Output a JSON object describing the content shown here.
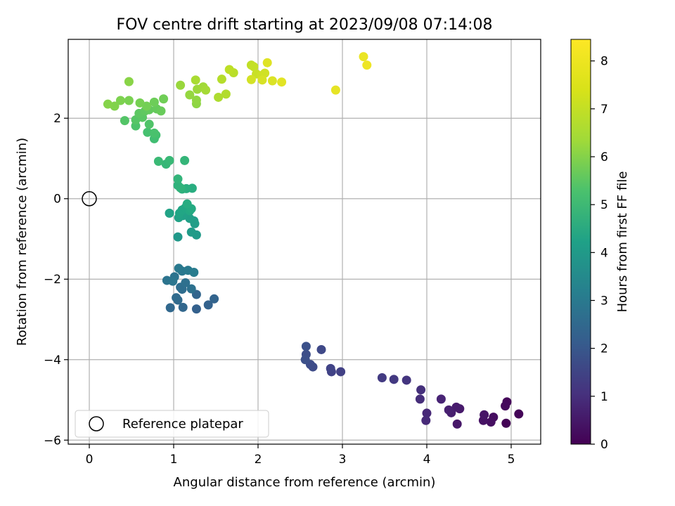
{
  "chart_data": {
    "type": "scatter",
    "title": "FOV centre drift starting at 2023/09/08 07:14:08",
    "xlabel": "Angular distance from reference (arcmin)",
    "ylabel": "Rotation from reference (arcmin)",
    "xlim": [
      -0.25,
      5.35
    ],
    "ylim": [
      -6.1,
      3.96
    ],
    "xticks": [
      "0",
      "1",
      "2",
      "3",
      "4",
      "5"
    ],
    "yticks": [
      "−6",
      "−4",
      "−2",
      "0",
      "2"
    ],
    "grid": true,
    "legend": {
      "position": "lower-left",
      "entries": [
        "Reference platepar"
      ]
    },
    "reference_point": {
      "x": 0,
      "y": 0
    },
    "colorbar": {
      "label": "Hours from first FF file",
      "range": [
        0,
        8.45
      ],
      "ticks": [
        "0",
        "1",
        "2",
        "3",
        "4",
        "5",
        "6",
        "7",
        "8"
      ],
      "colormap": "viridis"
    },
    "series": [
      {
        "points": [
          [
            4.94,
            -5.58,
            0.05
          ],
          [
            5.09,
            -5.35,
            0.1
          ],
          [
            4.95,
            -5.05,
            0.15
          ],
          [
            4.93,
            -5.15,
            0.2
          ],
          [
            4.79,
            -5.43,
            0.3
          ],
          [
            4.76,
            -5.55,
            0.35
          ],
          [
            4.67,
            -5.51,
            0.4
          ],
          [
            4.68,
            -5.37,
            0.45
          ],
          [
            4.36,
            -5.6,
            0.55
          ],
          [
            4.39,
            -5.22,
            0.6
          ],
          [
            4.35,
            -5.18,
            0.65
          ],
          [
            4.29,
            -5.32,
            0.7
          ],
          [
            4.26,
            -5.25,
            0.75
          ],
          [
            4.17,
            -4.98,
            0.85
          ],
          [
            4.0,
            -5.33,
            0.95
          ],
          [
            3.99,
            -5.51,
            1.0
          ],
          [
            3.92,
            -4.98,
            1.1
          ],
          [
            3.93,
            -4.75,
            1.15
          ],
          [
            3.76,
            -4.51,
            1.3
          ],
          [
            3.61,
            -4.49,
            1.4
          ],
          [
            3.47,
            -4.45,
            1.45
          ],
          [
            2.98,
            -4.3,
            1.6
          ],
          [
            2.87,
            -4.3,
            1.65
          ],
          [
            2.86,
            -4.22,
            1.7
          ],
          [
            2.75,
            -3.75,
            1.85
          ],
          [
            2.65,
            -4.18,
            1.9
          ],
          [
            2.62,
            -4.12,
            1.95
          ],
          [
            2.57,
            -3.87,
            2.0
          ],
          [
            2.56,
            -4.0,
            2.05
          ],
          [
            2.57,
            -3.67,
            2.1
          ],
          [
            1.27,
            -2.74,
            2.6
          ],
          [
            1.41,
            -2.64,
            2.65
          ],
          [
            1.48,
            -2.49,
            2.7
          ],
          [
            1.27,
            -2.38,
            2.75
          ],
          [
            1.11,
            -2.7,
            2.8
          ],
          [
            0.96,
            -2.71,
            2.85
          ],
          [
            1.05,
            -2.52,
            2.9
          ],
          [
            1.03,
            -2.46,
            2.95
          ],
          [
            1.1,
            -2.25,
            3.0
          ],
          [
            1.08,
            -2.2,
            3.05
          ],
          [
            1.14,
            -2.09,
            3.1
          ],
          [
            1.21,
            -2.24,
            3.15
          ],
          [
            1.01,
            -1.94,
            3.2
          ],
          [
            0.92,
            -2.03,
            3.25
          ],
          [
            0.99,
            -2.05,
            3.3
          ],
          [
            1.1,
            -1.8,
            3.35
          ],
          [
            1.06,
            -1.73,
            3.4
          ],
          [
            1.17,
            -1.78,
            3.45
          ],
          [
            1.24,
            -1.83,
            3.5
          ],
          [
            1.05,
            -0.95,
            4.5
          ],
          [
            1.27,
            -0.9,
            4.55
          ],
          [
            1.21,
            -0.83,
            4.6
          ],
          [
            1.25,
            -0.62,
            4.65
          ],
          [
            1.24,
            -0.55,
            4.7
          ],
          [
            1.19,
            -0.49,
            4.75
          ],
          [
            1.11,
            -0.42,
            4.8
          ],
          [
            1.06,
            -0.47,
            4.85
          ],
          [
            0.95,
            -0.36,
            4.9
          ],
          [
            1.07,
            -0.36,
            4.95
          ],
          [
            1.1,
            -0.28,
            5.0
          ],
          [
            1.14,
            -0.22,
            5.05
          ],
          [
            1.19,
            -0.3,
            5.1
          ],
          [
            1.21,
            -0.25,
            5.15
          ],
          [
            1.16,
            -0.13,
            5.2
          ],
          [
            1.22,
            0.26,
            5.25
          ],
          [
            1.15,
            0.25,
            5.3
          ],
          [
            1.1,
            0.24,
            5.35
          ],
          [
            1.05,
            0.33,
            5.4
          ],
          [
            1.08,
            0.27,
            5.45
          ],
          [
            1.05,
            0.49,
            5.5
          ],
          [
            1.13,
            0.95,
            5.55
          ],
          [
            0.91,
            0.86,
            5.6
          ],
          [
            0.95,
            0.95,
            5.65
          ],
          [
            0.82,
            0.93,
            5.7
          ],
          [
            0.77,
            1.49,
            5.85
          ],
          [
            0.79,
            1.58,
            5.9
          ],
          [
            0.69,
            1.65,
            5.95
          ],
          [
            0.77,
            1.63,
            6.0
          ],
          [
            0.55,
            1.81,
            6.05
          ],
          [
            0.71,
            1.85,
            6.1
          ],
          [
            0.42,
            1.94,
            6.15
          ],
          [
            0.55,
            1.96,
            6.2
          ],
          [
            0.63,
            2.02,
            6.25
          ],
          [
            0.59,
            2.12,
            6.3
          ],
          [
            0.66,
            2.18,
            6.35
          ],
          [
            0.71,
            2.21,
            6.4
          ],
          [
            0.8,
            2.23,
            6.45
          ],
          [
            0.85,
            2.18,
            6.5
          ],
          [
            0.77,
            2.4,
            6.55
          ],
          [
            0.88,
            2.48,
            6.6
          ],
          [
            0.68,
            2.3,
            6.65
          ],
          [
            0.6,
            2.38,
            6.7
          ],
          [
            0.47,
            2.44,
            6.75
          ],
          [
            0.37,
            2.44,
            6.8
          ],
          [
            0.3,
            2.3,
            6.85
          ],
          [
            0.22,
            2.35,
            6.9
          ],
          [
            0.47,
            2.91,
            6.95
          ],
          [
            1.27,
            2.36,
            7.0
          ],
          [
            1.27,
            2.45,
            7.05
          ],
          [
            1.19,
            2.58,
            7.1
          ],
          [
            1.08,
            2.82,
            7.15
          ],
          [
            1.28,
            2.72,
            7.2
          ],
          [
            1.35,
            2.78,
            7.25
          ],
          [
            1.38,
            2.7,
            7.3
          ],
          [
            1.26,
            2.95,
            7.35
          ],
          [
            1.53,
            2.52,
            7.4
          ],
          [
            1.62,
            2.6,
            7.45
          ],
          [
            1.57,
            2.97,
            7.5
          ],
          [
            1.71,
            3.13,
            7.55
          ],
          [
            1.66,
            3.21,
            7.6
          ],
          [
            1.92,
            3.32,
            7.65
          ],
          [
            1.95,
            3.28,
            7.7
          ],
          [
            1.98,
            3.1,
            7.75
          ],
          [
            2.04,
            3.06,
            7.8
          ],
          [
            2.08,
            3.12,
            7.85
          ],
          [
            1.92,
            2.96,
            7.9
          ],
          [
            2.05,
            2.95,
            7.95
          ],
          [
            2.17,
            2.93,
            8.0
          ],
          [
            2.11,
            3.38,
            8.05
          ],
          [
            2.28,
            2.9,
            8.1
          ],
          [
            2.92,
            2.7,
            8.15
          ],
          [
            3.25,
            3.53,
            8.2
          ],
          [
            3.29,
            3.32,
            8.25
          ]
        ]
      }
    ]
  }
}
